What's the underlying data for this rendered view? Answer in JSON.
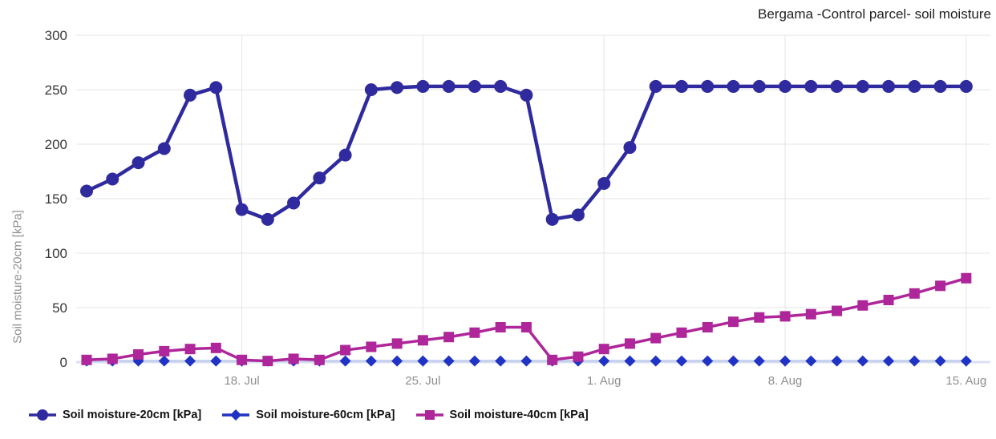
{
  "title": "Bergama -Control parcel- soil moisture",
  "colors": {
    "series_20cm": "#2f2b9e",
    "series_60cm_marker": "#2033c4",
    "series_60cm_line": "#c7d0ec",
    "series_40cm": "#ae2699",
    "gridline": "#e4e4e4",
    "baseline": "#d9e1f3",
    "tick_mark": "#b3b3b3",
    "x_tick_text": "#8f8f8f",
    "y_tick_text": "#383838",
    "title_text": "#212121",
    "axis_title_text": "#8f8f8f"
  },
  "chart_data": {
    "type": "line",
    "title": "Bergama -Control parcel- soil moisture",
    "xlabel": "",
    "ylabel": "Soil moisture-20cm [kPa]",
    "ylim": [
      0,
      300
    ],
    "y_ticks": [
      0,
      50,
      100,
      150,
      200,
      250,
      300
    ],
    "grid": true,
    "legend_position": "bottom-left",
    "x": [
      "12. Jul",
      "13. Jul",
      "14. Jul",
      "15. Jul",
      "16. Jul",
      "17. Jul",
      "18. Jul",
      "19. Jul",
      "20. Jul",
      "21. Jul",
      "22. Jul",
      "23. Jul",
      "24. Jul",
      "25. Jul",
      "26. Jul",
      "27. Jul",
      "28. Jul",
      "29. Jul",
      "30. Jul",
      "31. Jul",
      "1. Aug",
      "2. Aug",
      "3. Aug",
      "4. Aug",
      "5. Aug",
      "6. Aug",
      "7. Aug",
      "8. Aug",
      "9. Aug",
      "10. Aug",
      "11. Aug",
      "12. Aug",
      "13. Aug",
      "14. Aug",
      "15. Aug"
    ],
    "x_ticks": [
      {
        "index": 6,
        "label": "18. Jul"
      },
      {
        "index": 13,
        "label": "25. Jul"
      },
      {
        "index": 20,
        "label": "1. Aug"
      },
      {
        "index": 27,
        "label": "8. Aug"
      },
      {
        "index": 34,
        "label": "15. Aug"
      }
    ],
    "series": [
      {
        "name": "Soil moisture-20cm [kPa]",
        "marker": "circle",
        "color": "#2f2b9e",
        "line_color": "#2f2b9e",
        "values": [
          157,
          168,
          183,
          196,
          245,
          252,
          140,
          131,
          146,
          169,
          190,
          250,
          252,
          253,
          253,
          253,
          253,
          245,
          131,
          135,
          164,
          197,
          253,
          253,
          253,
          253,
          253,
          253,
          253,
          253,
          253,
          253,
          253,
          253,
          253
        ]
      },
      {
        "name": "Soil moisture-60cm [kPa]",
        "marker": "diamond",
        "color": "#2033c4",
        "line_color": "#c7d0ec",
        "values": [
          1,
          1,
          1,
          1,
          1,
          1,
          1,
          1,
          1,
          1,
          1,
          1,
          1,
          1,
          1,
          1,
          1,
          1,
          1,
          1,
          1,
          1,
          1,
          1,
          1,
          1,
          1,
          1,
          1,
          1,
          1,
          1,
          1,
          1,
          1
        ]
      },
      {
        "name": "Soil moisture-40cm [kPa]",
        "marker": "square",
        "color": "#ae2699",
        "line_color": "#ae2699",
        "values": [
          2,
          3,
          7,
          10,
          12,
          13,
          2,
          1,
          3,
          2,
          11,
          14,
          17,
          20,
          23,
          27,
          32,
          32,
          2,
          5,
          12,
          17,
          22,
          27,
          32,
          37,
          41,
          42,
          44,
          47,
          52,
          57,
          63,
          70,
          77
        ]
      }
    ]
  },
  "legend": {
    "items": [
      {
        "label": "Soil moisture-20cm [kPa]"
      },
      {
        "label": "Soil moisture-60cm [kPa]"
      },
      {
        "label": "Soil moisture-40cm [kPa]"
      }
    ]
  }
}
